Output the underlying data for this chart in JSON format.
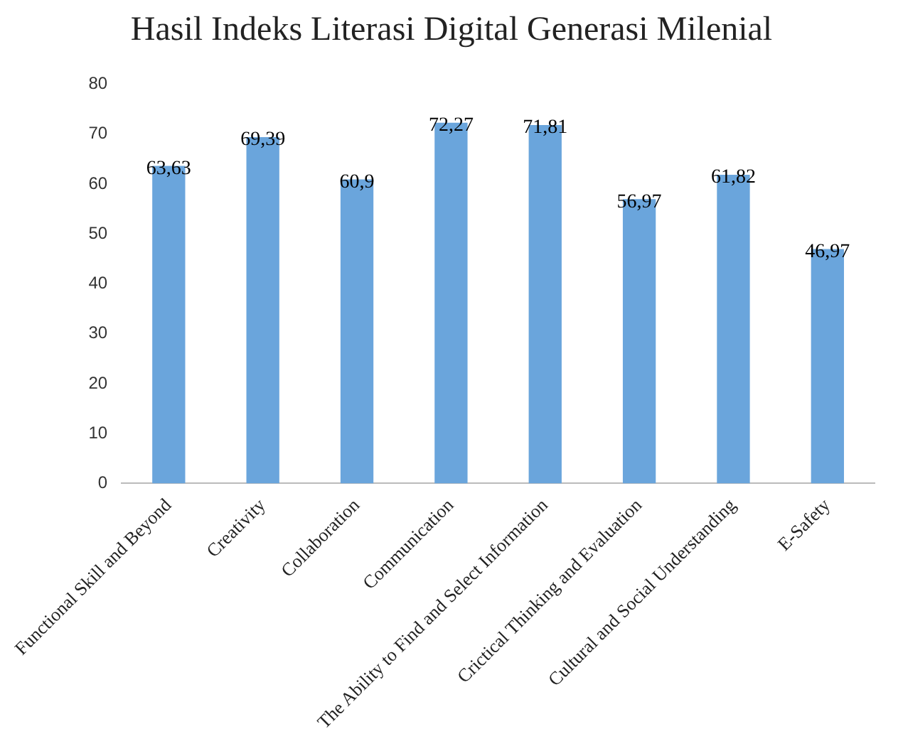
{
  "chart_data": {
    "type": "bar",
    "title": "Hasil Indeks Literasi Digital Generasi Milenial",
    "categories": [
      "Functional Skill and Beyond",
      "Creativity",
      "Collaboration",
      "Communication",
      "The Ability to Find and Select Information",
      "Crictical Thinking and Evaluation",
      "Cultural and Social Understanding",
      "E-Safety"
    ],
    "values": [
      63.63,
      69.39,
      60.9,
      72.27,
      71.81,
      56.97,
      61.82,
      46.97
    ],
    "value_labels": [
      "63,63",
      "69,39",
      "60,9",
      "72,27",
      "71,81",
      "56,97",
      "61,82",
      "46,97"
    ],
    "color": "#6aa5dc",
    "ylim": [
      0,
      80
    ],
    "yticks": [
      0,
      10,
      20,
      30,
      40,
      50,
      60,
      70,
      80
    ],
    "grid": false,
    "legend": false
  }
}
